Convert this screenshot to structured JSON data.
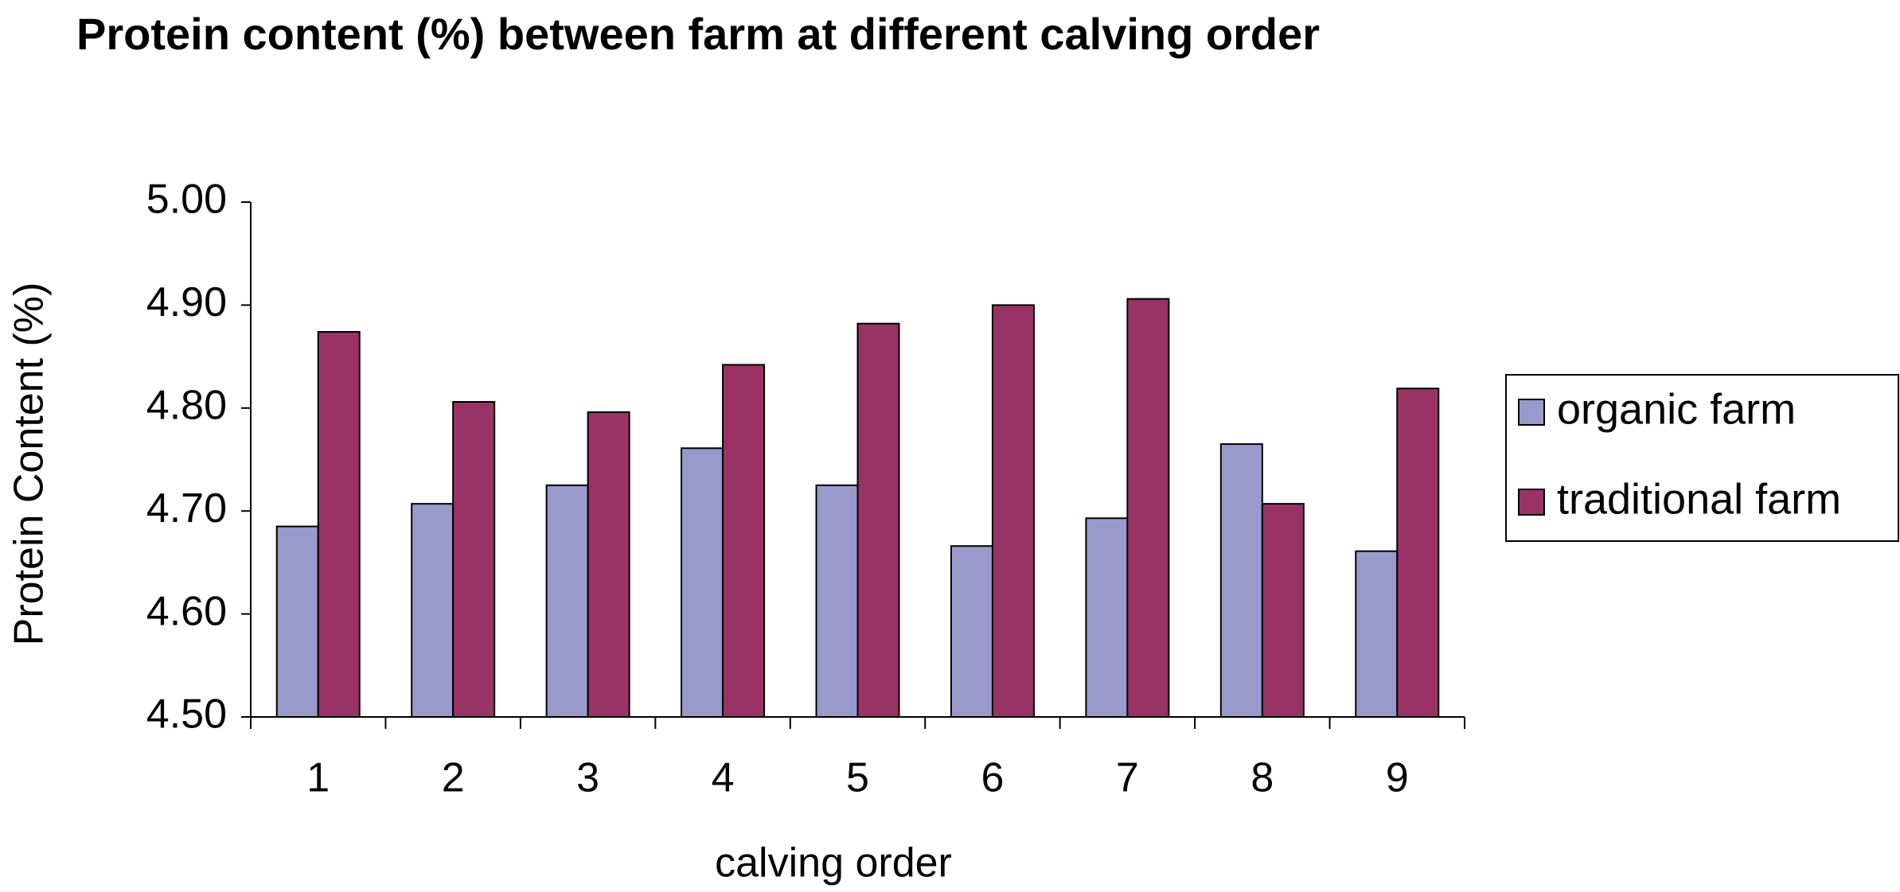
{
  "chart_data": {
    "type": "bar",
    "title": "Protein content (%) between farm at different calving order",
    "x_label": "calving order",
    "y_label": "Protein Content (%)",
    "categories": [
      "1",
      "2",
      "3",
      "4",
      "5",
      "6",
      "7",
      "8",
      "9"
    ],
    "series": [
      {
        "name": "organic farm",
        "color": "#9999cc",
        "values": [
          4.685,
          4.707,
          4.725,
          4.761,
          4.725,
          4.666,
          4.693,
          4.765,
          4.661
        ]
      },
      {
        "name": "traditional farm",
        "color": "#993366",
        "values": [
          4.874,
          4.806,
          4.796,
          4.842,
          4.882,
          4.9,
          4.906,
          4.707,
          4.819
        ]
      }
    ],
    "ylim": [
      4.5,
      5.0
    ],
    "yticks": [
      {
        "value": 4.5,
        "label": "4.50"
      },
      {
        "value": 4.6,
        "label": "4.60"
      },
      {
        "value": 4.7,
        "label": "4.70"
      },
      {
        "value": 4.8,
        "label": "4.80"
      },
      {
        "value": 4.9,
        "label": "4.90"
      },
      {
        "value": 5.0,
        "label": "5.00"
      }
    ],
    "grid": false,
    "legend": "right"
  }
}
